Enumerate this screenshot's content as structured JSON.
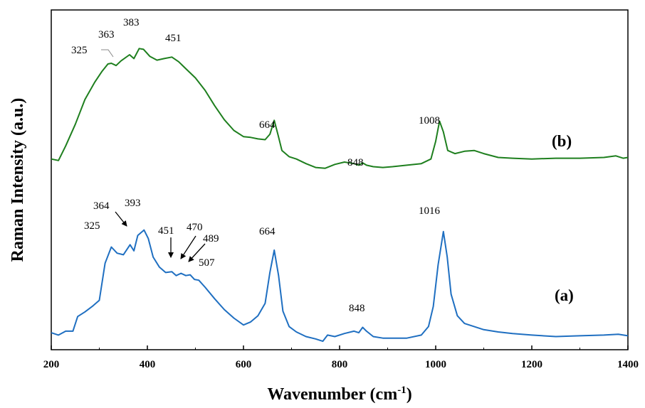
{
  "chart_data": {
    "type": "line",
    "xlabel": "Wavenumber (cm",
    "xlabel_sup": "-1",
    "xlabel_end": ")",
    "ylabel": "Raman Intensity (a.u.)",
    "xlim": [
      200,
      1400
    ],
    "ylim": [
      0,
      2.2
    ],
    "x_ticks": [
      "200",
      "400",
      "600",
      "800",
      "1000",
      "1200",
      "1400"
    ],
    "grid": false,
    "series": [
      {
        "name": "(b)",
        "color": "#1e7f1e",
        "points": [
          [
            200,
            1.235
          ],
          [
            215,
            1.225
          ],
          [
            230,
            1.32
          ],
          [
            250,
            1.46
          ],
          [
            270,
            1.62
          ],
          [
            290,
            1.73
          ],
          [
            305,
            1.8
          ],
          [
            318,
            1.85
          ],
          [
            325,
            1.855
          ],
          [
            335,
            1.84
          ],
          [
            345,
            1.87
          ],
          [
            363,
            1.91
          ],
          [
            372,
            1.885
          ],
          [
            383,
            1.95
          ],
          [
            392,
            1.945
          ],
          [
            405,
            1.9
          ],
          [
            420,
            1.875
          ],
          [
            435,
            1.885
          ],
          [
            451,
            1.895
          ],
          [
            465,
            1.865
          ],
          [
            480,
            1.82
          ],
          [
            500,
            1.76
          ],
          [
            520,
            1.68
          ],
          [
            540,
            1.58
          ],
          [
            560,
            1.49
          ],
          [
            580,
            1.42
          ],
          [
            600,
            1.38
          ],
          [
            615,
            1.375
          ],
          [
            630,
            1.365
          ],
          [
            645,
            1.36
          ],
          [
            655,
            1.395
          ],
          [
            664,
            1.485
          ],
          [
            672,
            1.39
          ],
          [
            680,
            1.29
          ],
          [
            695,
            1.25
          ],
          [
            710,
            1.235
          ],
          [
            730,
            1.205
          ],
          [
            750,
            1.18
          ],
          [
            770,
            1.175
          ],
          [
            790,
            1.2
          ],
          [
            810,
            1.215
          ],
          [
            830,
            1.205
          ],
          [
            840,
            1.195
          ],
          [
            848,
            1.21
          ],
          [
            856,
            1.195
          ],
          [
            870,
            1.185
          ],
          [
            890,
            1.18
          ],
          [
            910,
            1.185
          ],
          [
            940,
            1.195
          ],
          [
            970,
            1.205
          ],
          [
            990,
            1.235
          ],
          [
            1000,
            1.35
          ],
          [
            1008,
            1.48
          ],
          [
            1016,
            1.41
          ],
          [
            1025,
            1.29
          ],
          [
            1040,
            1.27
          ],
          [
            1060,
            1.285
          ],
          [
            1080,
            1.29
          ],
          [
            1100,
            1.27
          ],
          [
            1130,
            1.245
          ],
          [
            1160,
            1.24
          ],
          [
            1200,
            1.235
          ],
          [
            1250,
            1.24
          ],
          [
            1300,
            1.24
          ],
          [
            1350,
            1.245
          ],
          [
            1375,
            1.255
          ],
          [
            1390,
            1.24
          ],
          [
            1400,
            1.245
          ]
        ],
        "peak_labels": [
          "325",
          "363",
          "383",
          "451",
          "664",
          "848",
          "1008"
        ]
      },
      {
        "name": "(a)",
        "color": "#1f6fc1",
        "points": [
          [
            200,
            0.11
          ],
          [
            215,
            0.095
          ],
          [
            230,
            0.12
          ],
          [
            245,
            0.12
          ],
          [
            255,
            0.215
          ],
          [
            270,
            0.245
          ],
          [
            285,
            0.28
          ],
          [
            300,
            0.32
          ],
          [
            312,
            0.56
          ],
          [
            325,
            0.665
          ],
          [
            337,
            0.625
          ],
          [
            350,
            0.615
          ],
          [
            364,
            0.68
          ],
          [
            372,
            0.64
          ],
          [
            380,
            0.74
          ],
          [
            393,
            0.775
          ],
          [
            402,
            0.72
          ],
          [
            412,
            0.6
          ],
          [
            425,
            0.535
          ],
          [
            438,
            0.5
          ],
          [
            451,
            0.505
          ],
          [
            460,
            0.48
          ],
          [
            470,
            0.495
          ],
          [
            480,
            0.48
          ],
          [
            489,
            0.485
          ],
          [
            498,
            0.455
          ],
          [
            507,
            0.45
          ],
          [
            520,
            0.405
          ],
          [
            540,
            0.33
          ],
          [
            560,
            0.26
          ],
          [
            580,
            0.205
          ],
          [
            600,
            0.16
          ],
          [
            615,
            0.18
          ],
          [
            630,
            0.22
          ],
          [
            645,
            0.3
          ],
          [
            655,
            0.5
          ],
          [
            664,
            0.645
          ],
          [
            673,
            0.48
          ],
          [
            682,
            0.25
          ],
          [
            695,
            0.15
          ],
          [
            710,
            0.115
          ],
          [
            730,
            0.085
          ],
          [
            750,
            0.07
          ],
          [
            765,
            0.055
          ],
          [
            775,
            0.095
          ],
          [
            790,
            0.085
          ],
          [
            810,
            0.105
          ],
          [
            830,
            0.12
          ],
          [
            840,
            0.11
          ],
          [
            848,
            0.145
          ],
          [
            856,
            0.12
          ],
          [
            870,
            0.085
          ],
          [
            890,
            0.075
          ],
          [
            910,
            0.075
          ],
          [
            940,
            0.075
          ],
          [
            970,
            0.095
          ],
          [
            985,
            0.15
          ],
          [
            995,
            0.28
          ],
          [
            1005,
            0.55
          ],
          [
            1016,
            0.765
          ],
          [
            1024,
            0.6
          ],
          [
            1032,
            0.36
          ],
          [
            1045,
            0.22
          ],
          [
            1060,
            0.17
          ],
          [
            1080,
            0.15
          ],
          [
            1100,
            0.13
          ],
          [
            1130,
            0.115
          ],
          [
            1160,
            0.105
          ],
          [
            1200,
            0.095
          ],
          [
            1250,
            0.085
          ],
          [
            1300,
            0.09
          ],
          [
            1350,
            0.095
          ],
          [
            1380,
            0.1
          ],
          [
            1400,
            0.09
          ]
        ],
        "peak_labels": [
          "325",
          "364",
          "393",
          "451",
          "470",
          "489",
          "507",
          "664",
          "848",
          "1016"
        ]
      }
    ]
  }
}
